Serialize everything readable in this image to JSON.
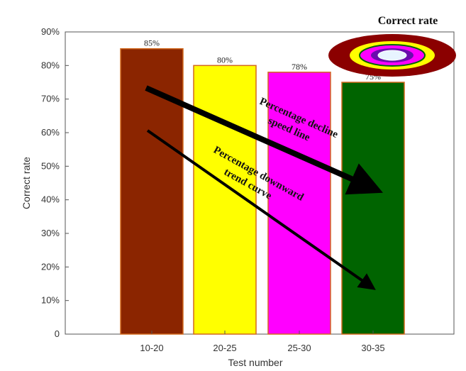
{
  "chart_data": {
    "type": "bar",
    "categories": [
      "10-20",
      "20-25",
      "25-30",
      "30-35"
    ],
    "values": [
      85,
      80,
      78,
      75
    ],
    "data_labels": [
      "85%",
      "80%",
      "78%",
      "75%"
    ],
    "bar_colors": [
      "#8b2500",
      "#ffff00",
      "#ff00ff",
      "#006400"
    ],
    "xlabel": "Test number",
    "ylabel": "Correct rate",
    "ylim": [
      0,
      90
    ],
    "yticks": [
      0,
      10,
      20,
      30,
      40,
      50,
      60,
      70,
      80,
      90
    ],
    "ytick_labels": [
      "0",
      "10%",
      "20%",
      "30%",
      "40%",
      "50%",
      "60%",
      "70%",
      "80%",
      "90%"
    ],
    "grid": false,
    "legend": {
      "title": "Correct rate",
      "placement": "top-right"
    },
    "annotations": [
      {
        "text_lines": [
          "Percentage decline",
          "speed line"
        ]
      },
      {
        "text_lines": [
          "Percentage downward",
          "trend curve"
        ]
      }
    ]
  }
}
